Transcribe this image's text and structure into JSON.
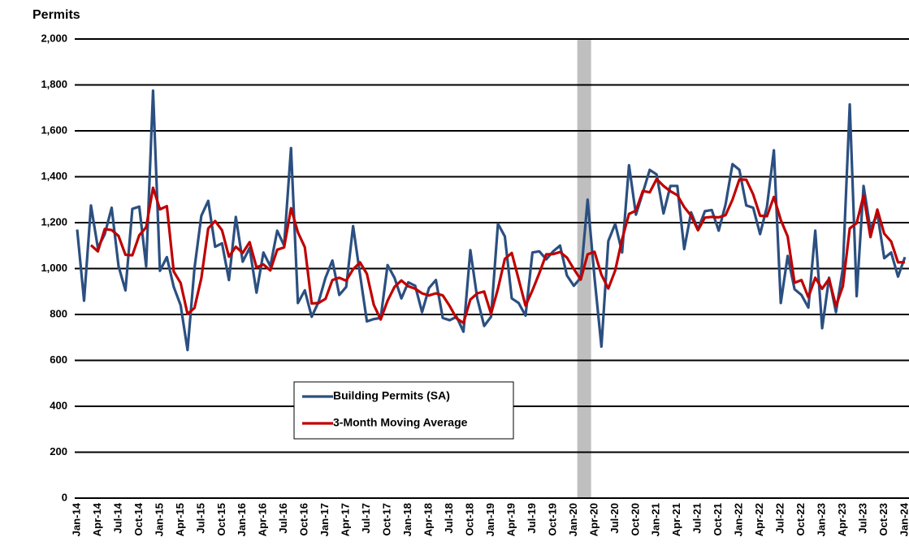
{
  "chart_data": {
    "type": "line",
    "y_label": "Permits",
    "categories": [
      "Jan-14",
      null,
      null,
      "Apr-14",
      null,
      null,
      "Jul-14",
      null,
      null,
      "Oct-14",
      null,
      null,
      "Jan-15",
      null,
      null,
      "Apr-15",
      null,
      null,
      "Jul-15",
      null,
      null,
      "Oct-15",
      null,
      null,
      "Jan-16",
      null,
      null,
      "Apr-16",
      null,
      null,
      "Jul-16",
      null,
      null,
      "Oct-16",
      null,
      null,
      "Jan-17",
      null,
      null,
      "Apr-17",
      null,
      null,
      "Jul-17",
      null,
      null,
      "Oct-17",
      null,
      null,
      "Jan-18",
      null,
      null,
      "Apr-18",
      null,
      null,
      "Jul-18",
      null,
      null,
      "Oct-18",
      null,
      null,
      "Jan-19",
      null,
      null,
      "Apr-19",
      null,
      null,
      "Jul-19",
      null,
      null,
      "Oct-19",
      null,
      null,
      "Jan-20",
      null,
      null,
      "Apr-20",
      null,
      null,
      "Jul-20",
      null,
      null,
      "Oct-20",
      null,
      null,
      "Jan-21",
      null,
      null,
      "Apr-21",
      null,
      null,
      "Jul-21",
      null,
      null,
      "Oct-21",
      null,
      null,
      "Jan-22",
      null,
      null,
      "Apr-22",
      null,
      null,
      "Jul-22",
      null,
      null,
      "Oct-22",
      null,
      null,
      "Jan-23",
      null,
      null,
      "Apr-23",
      null,
      null,
      "Jul-23",
      null,
      null,
      "Oct-23",
      null,
      null,
      "Jan-24"
    ],
    "series": [
      {
        "name": "Building Permits (SA)",
        "color": "#2b4f80",
        "values": [
          1170,
          860,
          1275,
          1090,
          1150,
          1265,
          1010,
          905,
          1260,
          1270,
          1010,
          1775,
          990,
          1050,
          920,
          840,
          645,
          1000,
          1230,
          1295,
          1095,
          1110,
          950,
          1225,
          1030,
          1090,
          895,
          1070,
          1010,
          1165,
          1100,
          1525,
          850,
          905,
          790,
          855,
          960,
          1035,
          885,
          920,
          1185,
          975,
          770,
          780,
          785,
          1015,
          960,
          870,
          940,
          925,
          810,
          915,
          950,
          785,
          775,
          790,
          725,
          1080,
          870,
          750,
          790,
          1195,
          1140,
          870,
          850,
          795,
          1070,
          1075,
          1040,
          1075,
          1100,
          970,
          925,
          960,
          1300,
          960,
          660,
          1120,
          1195,
          1070,
          1450,
          1235,
          1330,
          1430,
          1410,
          1240,
          1360,
          1360,
          1085,
          1245,
          1170,
          1250,
          1255,
          1165,
          1280,
          1455,
          1430,
          1275,
          1265,
          1150,
          1270,
          1515,
          850,
          1055,
          910,
          885,
          830,
          1165,
          740,
          960,
          810,
          1000,
          1715,
          880,
          1360,
          1170,
          1240,
          1045,
          1070,
          965,
          1050
        ]
      },
      {
        "name": "3-Month Moving Average",
        "color": "#c00000",
        "values": [
          null,
          null,
          1102,
          1075,
          1172,
          1168,
          1142,
          1060,
          1058,
          1145,
          1180,
          1352,
          1258,
          1272,
          987,
          937,
          802,
          828,
          958,
          1175,
          1207,
          1167,
          1052,
          1095,
          1068,
          1115,
          1005,
          1018,
          992,
          1082,
          1092,
          1263,
          1158,
          1093,
          848,
          850,
          868,
          950,
          960,
          947,
          997,
          1027,
          977,
          842,
          778,
          860,
          920,
          948,
          923,
          912,
          892,
          883,
          892,
          883,
          837,
          783,
          763,
          865,
          892,
          900,
          803,
          912,
          1042,
          1068,
          953,
          838,
          905,
          980,
          1062,
          1063,
          1072,
          1048,
          998,
          952,
          1062,
          1073,
          973,
          913,
          992,
          1128,
          1238,
          1252,
          1338,
          1332,
          1390,
          1360,
          1337,
          1320,
          1268,
          1230,
          1167,
          1222,
          1225,
          1223,
          1233,
          1300,
          1388,
          1387,
          1323,
          1230,
          1228,
          1312,
          1212,
          1140,
          938,
          950,
          875,
          960,
          912,
          955,
          837,
          923,
          1175,
          1198,
          1318,
          1137,
          1257,
          1152,
          1118,
          1027,
          1028
        ]
      }
    ],
    "shade": [
      72.5,
      74.5
    ],
    "ylim": [
      0,
      2000
    ],
    "yticks": [
      0,
      200,
      400,
      600,
      800,
      {
        "value": 1000,
        "label": "1,000"
      },
      {
        "value": 1200,
        "label": "1,200"
      },
      {
        "value": 1400,
        "label": "1,400"
      },
      {
        "value": 1600,
        "label": "1,600"
      },
      {
        "value": 1800,
        "label": "1,800"
      },
      {
        "value": 2000,
        "label": "2,000"
      }
    ],
    "grid": true,
    "legend": "lower center"
  }
}
